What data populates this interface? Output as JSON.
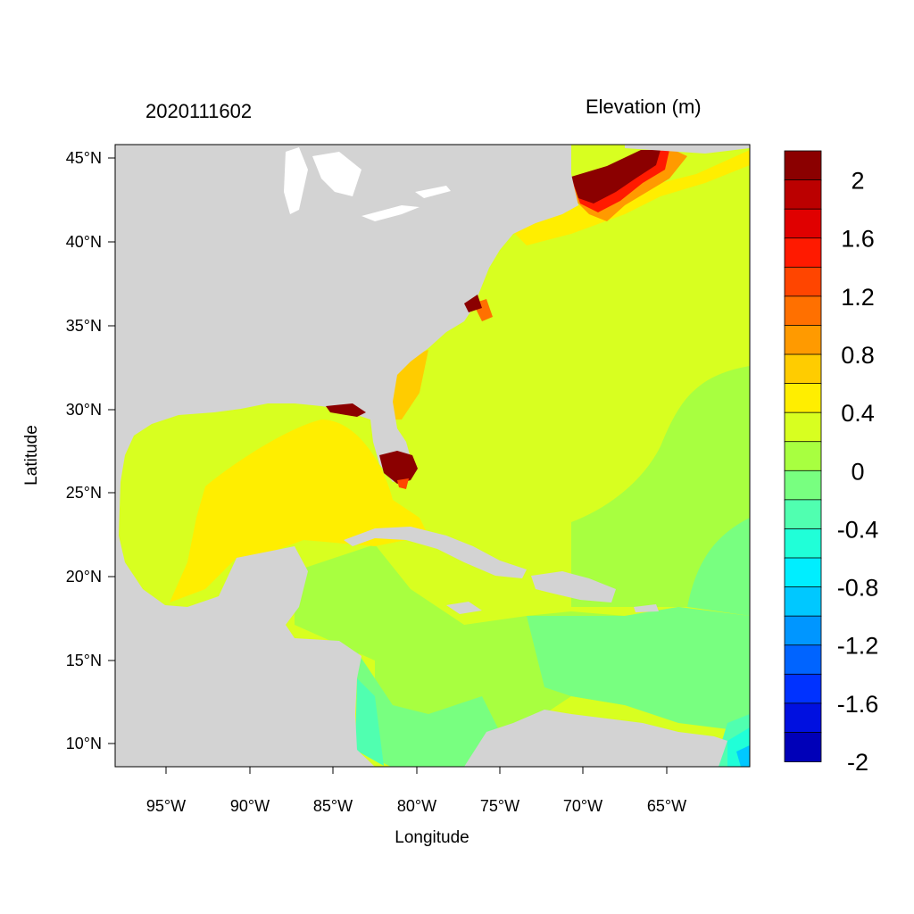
{
  "header": {
    "timestamp": "2020111602",
    "variable": "Elevation (m)"
  },
  "axes": {
    "xlabel": "Longitude",
    "ylabel": "Latitude",
    "x_ticks": [
      "95°W",
      "90°W",
      "85°W",
      "80°W",
      "75°W",
      "70°W",
      "65°W"
    ],
    "y_ticks": [
      "45°N",
      "40°N",
      "35°N",
      "30°N",
      "25°N",
      "20°N",
      "15°N",
      "10°N"
    ]
  },
  "colorbar": {
    "labels": [
      "2",
      "1.6",
      "1.2",
      "0.8",
      "0.4",
      "0",
      "-0.4",
      "-0.8",
      "-1.2",
      "-1.6",
      "-2"
    ],
    "colors": [
      "#8b0000",
      "#bb0000",
      "#e00000",
      "#ff1a00",
      "#ff4500",
      "#ff7000",
      "#ff9a00",
      "#ffcc00",
      "#ffee00",
      "#d8ff20",
      "#a8ff40",
      "#78ff80",
      "#50ffb0",
      "#20ffd8",
      "#00eeff",
      "#00c8ff",
      "#0096ff",
      "#0064ff",
      "#0032ff",
      "#0010e0",
      "#0000b8"
    ]
  },
  "map_colors": {
    "land": "#d3d3d3",
    "lakes": "#ffffff"
  }
}
